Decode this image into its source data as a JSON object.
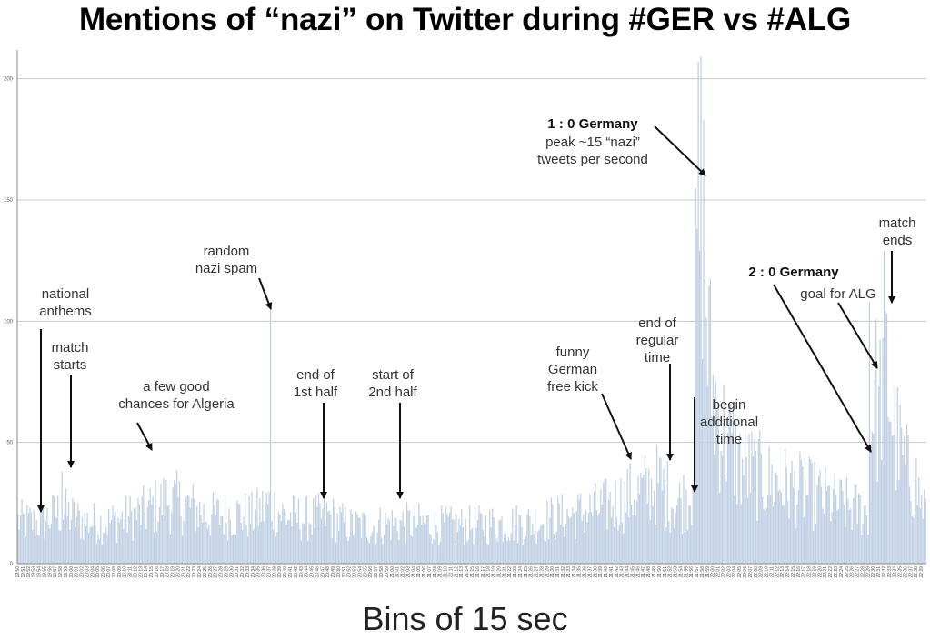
{
  "chart_data": {
    "type": "bar",
    "title": "Mentions of “nazi” on Twitter during #GER vs #ALG",
    "xlabel": "Bins of 15 sec",
    "ylabel": "",
    "ylim": [
      0,
      210
    ],
    "yticks": [
      0,
      50,
      100,
      150,
      200
    ],
    "grid": true,
    "x_start": "19:50",
    "x_end": "22:39",
    "bin_seconds": 15,
    "x_tick_every_minutes": 1,
    "profile": [
      {
        "t": "19:50",
        "v": 18
      },
      {
        "t": "19:54",
        "v": 17
      },
      {
        "t": "19:58",
        "v": 22
      },
      {
        "t": "20:02",
        "v": 18
      },
      {
        "t": "20:06",
        "v": 17
      },
      {
        "t": "20:10",
        "v": 19
      },
      {
        "t": "20:14",
        "v": 22
      },
      {
        "t": "20:18",
        "v": 27
      },
      {
        "t": "20:22",
        "v": 24
      },
      {
        "t": "20:26",
        "v": 20
      },
      {
        "t": "20:30",
        "v": 21
      },
      {
        "t": "20:34",
        "v": 20
      },
      {
        "t": "20:37",
        "v": 25
      },
      {
        "t": "20:40",
        "v": 20
      },
      {
        "t": "20:44",
        "v": 19
      },
      {
        "t": "20:48",
        "v": 20
      },
      {
        "t": "20:52",
        "v": 16
      },
      {
        "t": "20:56",
        "v": 16
      },
      {
        "t": "21:00",
        "v": 17
      },
      {
        "t": "21:05",
        "v": 17
      },
      {
        "t": "21:10",
        "v": 16
      },
      {
        "t": "21:15",
        "v": 16
      },
      {
        "t": "21:20",
        "v": 17
      },
      {
        "t": "21:25",
        "v": 17
      },
      {
        "t": "21:30",
        "v": 19
      },
      {
        "t": "21:35",
        "v": 21
      },
      {
        "t": "21:40",
        "v": 24
      },
      {
        "t": "21:45",
        "v": 29
      },
      {
        "t": "21:50",
        "v": 34
      },
      {
        "t": "21:53",
        "v": 25
      },
      {
        "t": "21:56",
        "v": 30
      },
      {
        "t": "21:57",
        "v": 130
      },
      {
        "t": "21:58",
        "v": 160
      },
      {
        "t": "21:59",
        "v": 95
      },
      {
        "t": "22:00",
        "v": 72
      },
      {
        "t": "22:02",
        "v": 55
      },
      {
        "t": "22:05",
        "v": 42
      },
      {
        "t": "22:10",
        "v": 35
      },
      {
        "t": "22:15",
        "v": 32
      },
      {
        "t": "22:20",
        "v": 28
      },
      {
        "t": "22:25",
        "v": 24
      },
      {
        "t": "22:29",
        "v": 22
      },
      {
        "t": "22:30",
        "v": 80
      },
      {
        "t": "22:31",
        "v": 62
      },
      {
        "t": "22:32",
        "v": 90
      },
      {
        "t": "22:34",
        "v": 55
      },
      {
        "t": "22:36",
        "v": 40
      },
      {
        "t": "22:38",
        "v": 34
      },
      {
        "t": "22:39",
        "v": 25
      }
    ],
    "spikes": [
      {
        "t": "19:58",
        "v": 38
      },
      {
        "t": "20:37",
        "v": 105
      },
      {
        "t": "21:57",
        "v": 207
      },
      {
        "t": "21:58",
        "v": 183
      },
      {
        "t": "22:29",
        "v": 108
      },
      {
        "t": "22:32",
        "v": 104
      }
    ],
    "bar_color": "#c0d0e4",
    "grid_color": "#c8c8c8",
    "annotations": [
      {
        "id": "national-anthems",
        "lines": [
          "national",
          "anthems"
        ],
        "bold": false,
        "t": "19:52",
        "arrow_to_v": 20
      },
      {
        "id": "match-starts",
        "lines": [
          "match",
          "starts"
        ],
        "bold": false,
        "t": "19:58",
        "arrow_to_v": 38
      },
      {
        "id": "a-few-good-chances",
        "lines": [
          "a few good",
          "chances for Algeria"
        ],
        "bold": false,
        "t": "20:14",
        "arrow_to_v": 45
      },
      {
        "id": "random-nazi-spam",
        "lines": [
          "random",
          "nazi spam"
        ],
        "bold": false,
        "t": "20:37",
        "arrow_to_v": 104
      },
      {
        "id": "end-of-1st-half",
        "lines": [
          "end of",
          "1st half"
        ],
        "bold": false,
        "t": "20:46",
        "arrow_to_v": 27
      },
      {
        "id": "start-of-2nd-half",
        "lines": [
          "start of",
          "2nd half"
        ],
        "bold": false,
        "t": "21:00",
        "arrow_to_v": 27
      },
      {
        "id": "funny-german-free-kick",
        "lines": [
          "funny",
          "German",
          "free kick"
        ],
        "bold": false,
        "t": "21:45",
        "arrow_to_v": 43
      },
      {
        "id": "end-of-regular-time",
        "lines": [
          "end of",
          "regular",
          "time"
        ],
        "bold": false,
        "t": "21:50",
        "arrow_to_v": 42
      },
      {
        "id": "begin-additional-time",
        "lines": [
          "begin",
          "additional",
          "time"
        ],
        "bold": false,
        "t": "21:54",
        "arrow_to_v": 29
      },
      {
        "id": "one-nil-germany",
        "lines": [
          "1 : 0 Germany"
        ],
        "bold": true,
        "t": "21:57",
        "arrow_to_v": 160
      },
      {
        "id": "peak-note",
        "lines": [
          "peak ~15 “nazi”",
          "tweets per second"
        ],
        "bold": false,
        "t": "21:57",
        "arrow_to_v": 160
      },
      {
        "id": "two-nil-germany",
        "lines": [
          "2 : 0 Germany"
        ],
        "bold": true,
        "t": "22:29",
        "arrow_to_v": 45
      },
      {
        "id": "goal-for-alg",
        "lines": [
          "goal for ALG"
        ],
        "bold": false,
        "t": "22:30",
        "arrow_to_v": 80
      },
      {
        "id": "match-ends",
        "lines": [
          "match",
          "ends"
        ],
        "bold": false,
        "t": "22:32",
        "arrow_to_v": 107
      }
    ]
  }
}
